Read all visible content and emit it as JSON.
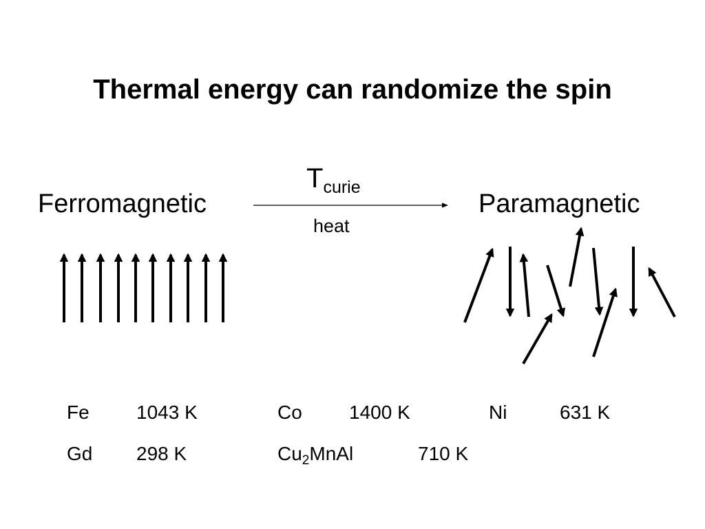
{
  "title": "Thermal energy can randomize the spin",
  "left_label": "Ferromagnetic",
  "right_label": "Paramagnetic",
  "transition": {
    "symbol": "T",
    "subscript": "curie",
    "condition": "heat"
  },
  "curie_temperatures": [
    {
      "material": "Fe",
      "temperature": "1043 K"
    },
    {
      "material": "Co",
      "temperature": "1400 K"
    },
    {
      "material": "Ni",
      "temperature": "631 K"
    },
    {
      "material": "Gd",
      "temperature": "298 K"
    },
    {
      "material": {
        "base": "Cu",
        "subscript": "2",
        "rest": "MnAl"
      },
      "temperature": "710 K"
    }
  ]
}
